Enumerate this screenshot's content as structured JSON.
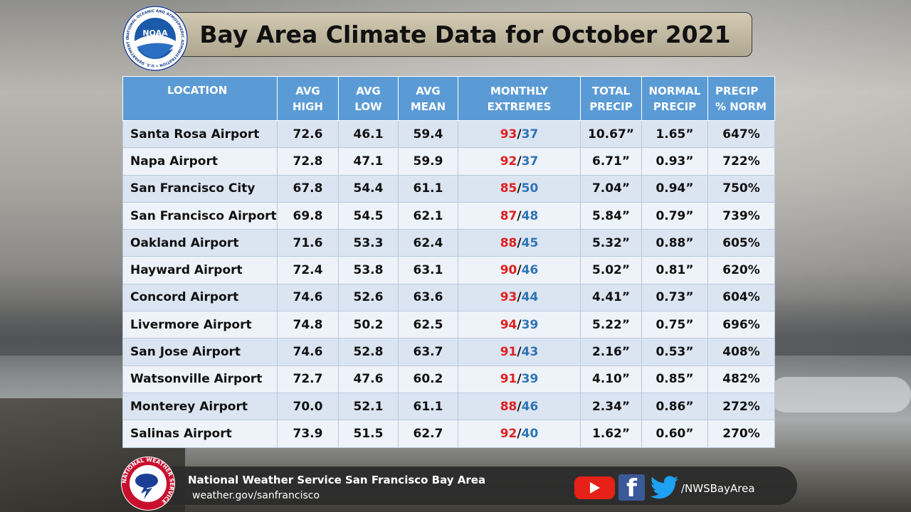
{
  "title": "Bay Area Climate Data for October 2021",
  "colors": {
    "header": "#5b9bd5",
    "row_odd": "#dbe5f2",
    "row_even": "#eef3f9",
    "extreme_high": "#e02020",
    "extreme_low": "#2e74b5"
  },
  "table": {
    "headers": {
      "location": "LOCATION",
      "avg_high": [
        "AVG",
        "HIGH"
      ],
      "avg_low": [
        "AVG",
        "LOW"
      ],
      "avg_mean": [
        "AVG",
        "MEAN"
      ],
      "extremes": [
        "MONTHLY",
        "EXTREMES"
      ],
      "total_precip": [
        "TOTAL",
        "PRECIP"
      ],
      "normal_precip": [
        "NORMAL",
        "PRECIP"
      ],
      "precip_norm": [
        "PRECIP",
        "% NORM"
      ]
    },
    "rows": [
      {
        "location": "Santa Rosa Airport",
        "avg_high": "72.6",
        "avg_low": "46.1",
        "avg_mean": "59.4",
        "ext_high": "93",
        "ext_low": "37",
        "total_precip": "10.67”",
        "normal_precip": "1.65”",
        "precip_norm": "647%"
      },
      {
        "location": "Napa Airport",
        "avg_high": "72.8",
        "avg_low": "47.1",
        "avg_mean": "59.9",
        "ext_high": "92",
        "ext_low": "37",
        "total_precip": "6.71”",
        "normal_precip": "0.93”",
        "precip_norm": "722%"
      },
      {
        "location": "San Francisco City",
        "avg_high": "67.8",
        "avg_low": "54.4",
        "avg_mean": "61.1",
        "ext_high": "85",
        "ext_low": "50",
        "total_precip": "7.04”",
        "normal_precip": "0.94”",
        "precip_norm": "750%"
      },
      {
        "location": "San Francisco Airport",
        "avg_high": "69.8",
        "avg_low": "54.5",
        "avg_mean": "62.1",
        "ext_high": "87",
        "ext_low": "48",
        "total_precip": "5.84”",
        "normal_precip": "0.79”",
        "precip_norm": "739%"
      },
      {
        "location": "Oakland Airport",
        "avg_high": "71.6",
        "avg_low": "53.3",
        "avg_mean": "62.4",
        "ext_high": "88",
        "ext_low": "45",
        "total_precip": "5.32”",
        "normal_precip": "0.88”",
        "precip_norm": "605%"
      },
      {
        "location": "Hayward Airport",
        "avg_high": "72.4",
        "avg_low": "53.8",
        "avg_mean": "63.1",
        "ext_high": "90",
        "ext_low": "46",
        "total_precip": "5.02”",
        "normal_precip": "0.81”",
        "precip_norm": "620%"
      },
      {
        "location": "Concord Airport",
        "avg_high": "74.6",
        "avg_low": "52.6",
        "avg_mean": "63.6",
        "ext_high": "93",
        "ext_low": "44",
        "total_precip": "4.41”",
        "normal_precip": "0.73”",
        "precip_norm": "604%"
      },
      {
        "location": "Livermore Airport",
        "avg_high": "74.8",
        "avg_low": "50.2",
        "avg_mean": "62.5",
        "ext_high": "94",
        "ext_low": "39",
        "total_precip": "5.22”",
        "normal_precip": "0.75”",
        "precip_norm": "696%"
      },
      {
        "location": "San Jose Airport",
        "avg_high": "74.6",
        "avg_low": "52.8",
        "avg_mean": "63.7",
        "ext_high": "91",
        "ext_low": "43",
        "total_precip": "2.16”",
        "normal_precip": "0.53”",
        "precip_norm": "408%"
      },
      {
        "location": "Watsonville Airport",
        "avg_high": "72.7",
        "avg_low": "47.6",
        "avg_mean": "60.2",
        "ext_high": "91",
        "ext_low": "39",
        "total_precip": "4.10”",
        "normal_precip": "0.85”",
        "precip_norm": "482%"
      },
      {
        "location": "Monterey Airport",
        "avg_high": "70.0",
        "avg_low": "52.1",
        "avg_mean": "61.1",
        "ext_high": "88",
        "ext_low": "46",
        "total_precip": "2.34”",
        "normal_precip": "0.86”",
        "precip_norm": "272%"
      },
      {
        "location": "Salinas Airport",
        "avg_high": "73.9",
        "avg_low": "51.5",
        "avg_mean": "62.7",
        "ext_high": "92",
        "ext_low": "40",
        "total_precip": "1.62”",
        "normal_precip": "0.60”",
        "precip_norm": "270%"
      }
    ]
  },
  "footer": {
    "org_name": "National Weather Service San Francisco Bay Area",
    "url": "weather.gov/sanfrancisco",
    "social_handle": "/NWSBayArea",
    "icons": [
      "youtube-icon",
      "facebook-icon",
      "twitter-icon"
    ]
  },
  "logos": {
    "noaa": {
      "center_text": "NOAA",
      "ring_text": "NATIONAL OCEANIC AND ATMOSPHERIC ADMINISTRATION • U.S. DEPARTMENT OF COMMERCE"
    },
    "nws": {
      "ring_text": "NATIONAL WEATHER SERVICE"
    }
  }
}
